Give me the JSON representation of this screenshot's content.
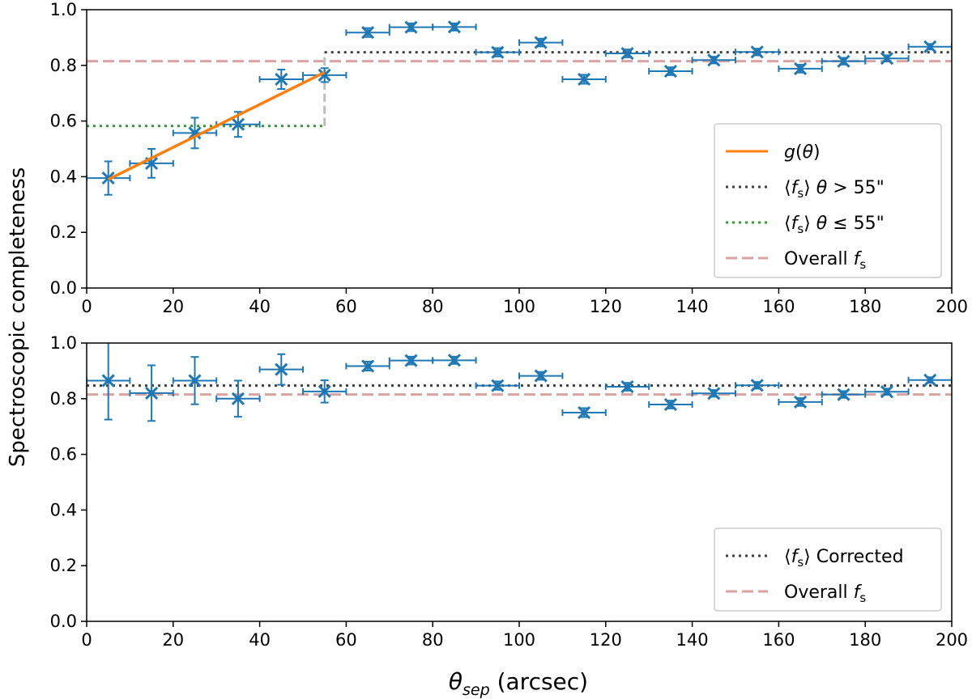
{
  "chart_data": {
    "type": "scatter",
    "ylabel": "Spectroscopic completeness",
    "xlabel": {
      "theta": "θ",
      "sub": "sep",
      "unit": " (arcsec)"
    },
    "xlim": [
      0,
      200
    ],
    "ylim": [
      0,
      1.0
    ],
    "xticks": [
      0,
      20,
      40,
      60,
      80,
      100,
      120,
      140,
      160,
      180,
      200
    ],
    "yticks": [
      0.0,
      0.2,
      0.4,
      0.6,
      0.8,
      1.0
    ],
    "xtick_labels": [
      "0",
      "20",
      "40",
      "60",
      "80",
      "100",
      "120",
      "140",
      "160",
      "180",
      "200"
    ],
    "ytick_labels": [
      "0.0",
      "0.2",
      "0.4",
      "0.6",
      "0.8",
      "1.0"
    ],
    "colors": {
      "data": "#1f77b4",
      "g": "#ff7f0e",
      "mean_high": "#404040",
      "mean_low": "#2ca02c",
      "overall": "#dba2a2",
      "step": "#bdbdbd"
    },
    "panels": [
      {
        "name": "top",
        "x": [
          5,
          15,
          25,
          35,
          45,
          55,
          65,
          75,
          85,
          95,
          105,
          115,
          125,
          135,
          145,
          155,
          165,
          175,
          185,
          195
        ],
        "y": [
          0.395,
          0.448,
          0.557,
          0.588,
          0.75,
          0.765,
          0.918,
          0.937,
          0.938,
          0.847,
          0.882,
          0.75,
          0.843,
          0.779,
          0.819,
          0.848,
          0.788,
          0.815,
          0.825,
          0.867
        ],
        "yerr": [
          0.06,
          0.052,
          0.055,
          0.045,
          0.035,
          0.025,
          0.016,
          0.014,
          0.013,
          0.015,
          0.014,
          0.016,
          0.014,
          0.014,
          0.012,
          0.012,
          0.014,
          0.012,
          0.011,
          0.01
        ],
        "xerr": 5,
        "g_line": {
          "x": [
            5,
            55
          ],
          "y": [
            0.39,
            0.775
          ]
        },
        "mean_high": {
          "value": 0.847,
          "x": [
            55,
            200
          ]
        },
        "mean_low": {
          "value": 0.582,
          "x": [
            0,
            55
          ]
        },
        "step_x": 55,
        "overall": 0.815,
        "legend": [
          {
            "label": "g(θ)",
            "style": "g"
          },
          {
            "label": "⟨f_s⟩ θ > 55\"",
            "style": "mean_high"
          },
          {
            "label": "⟨f_s⟩ θ ≤ 55\"",
            "style": "mean_low"
          },
          {
            "label": "Overall f_s",
            "style": "overall"
          }
        ]
      },
      {
        "name": "bottom",
        "x": [
          5,
          15,
          25,
          35,
          45,
          55,
          65,
          75,
          85,
          95,
          105,
          115,
          125,
          135,
          145,
          155,
          165,
          175,
          185,
          195
        ],
        "y": [
          0.865,
          0.82,
          0.865,
          0.8,
          0.905,
          0.826,
          0.917,
          0.937,
          0.938,
          0.847,
          0.882,
          0.75,
          0.843,
          0.779,
          0.819,
          0.848,
          0.788,
          0.815,
          0.825,
          0.867
        ],
        "yerr": [
          0.14,
          0.1,
          0.085,
          0.065,
          0.055,
          0.04,
          0.016,
          0.014,
          0.013,
          0.015,
          0.014,
          0.016,
          0.014,
          0.014,
          0.012,
          0.012,
          0.014,
          0.012,
          0.011,
          0.01
        ],
        "xerr": 5,
        "mean_high": {
          "value": 0.847,
          "x": [
            0,
            200
          ]
        },
        "overall": 0.815,
        "legend": [
          {
            "label": "⟨f_s⟩ Corrected",
            "style": "mean_high"
          },
          {
            "label": "Overall f_s",
            "style": "overall"
          }
        ]
      }
    ]
  }
}
